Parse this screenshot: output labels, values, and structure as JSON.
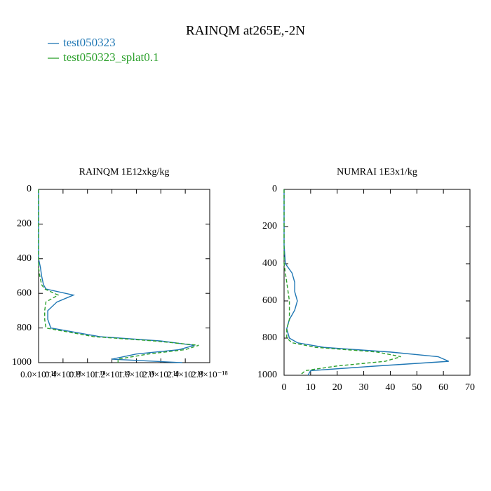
{
  "title": "RAINQM at265E,-2N",
  "legend": {
    "position": "upper left"
  },
  "chart_data": [
    {
      "type": "line",
      "title": "RAINQM  1E12xkg/kg",
      "y": [
        0,
        100,
        200,
        300,
        400,
        450,
        500,
        550,
        575,
        610,
        650,
        700,
        750,
        800,
        850,
        875,
        900,
        925,
        950,
        980,
        1000
      ],
      "series": [
        {
          "name": "test050323",
          "color": "#1f77b4",
          "linestyle": "solid",
          "values": [
            0,
            0,
            0,
            0,
            0,
            3e-20,
            5e-20,
            8e-20,
            1.2e-19,
            5.7e-19,
            3e-19,
            1.5e-19,
            1.5e-19,
            2e-19,
            1e-18,
            2e-18,
            2.55e-18,
            2.3e-18,
            1.6e-18,
            1.2e-18,
            2.35e-18
          ]
        },
        {
          "name": "test050323_splat0.1",
          "color": "#2ca02c",
          "linestyle": "dashed",
          "values": [
            0,
            0,
            0,
            0,
            0,
            0,
            2e-20,
            5e-20,
            1e-19,
            3.2e-19,
            1.2e-19,
            1e-19,
            1e-19,
            1.2e-19,
            9e-19,
            1.9e-18,
            2.62e-18,
            2.4e-18,
            1.8e-18,
            1.3e-18,
            1.3e-18
          ]
        }
      ],
      "xlim": [
        0,
        2.8e-18
      ],
      "xticks": [
        {
          "value": 0,
          "label": "0.0×10⁻¹⁸"
        },
        {
          "value": 4e-19,
          "label": "0.4×10⁻¹⁸"
        },
        {
          "value": 8e-19,
          "label": "0.8×10⁻¹⁸"
        },
        {
          "value": 1.2e-18,
          "label": "1.2×10⁻¹⁸"
        },
        {
          "value": 1.6e-18,
          "label": "1.6×10⁻¹⁸"
        },
        {
          "value": 2e-18,
          "label": "2.0×10⁻¹⁸"
        },
        {
          "value": 2.4e-18,
          "label": "2.4×10⁻¹⁸"
        },
        {
          "value": 2.8e-18,
          "label": "2.8×10⁻¹⁸"
        }
      ],
      "ylim": [
        1000,
        0
      ],
      "yticks": [
        0,
        200,
        400,
        600,
        800,
        1000
      ]
    },
    {
      "type": "line",
      "title": "NUMRAI  1E3x1/kg",
      "y": [
        0,
        100,
        200,
        300,
        400,
        450,
        500,
        550,
        600,
        650,
        700,
        750,
        800,
        825,
        850,
        875,
        900,
        925,
        950,
        975,
        1000
      ],
      "series": [
        {
          "color": "#1f77b4",
          "linestyle": "solid",
          "values": [
            0,
            0,
            0,
            0,
            0.5,
            3,
            4,
            4,
            5,
            4,
            2,
            1,
            2,
            5,
            15,
            40,
            58,
            62,
            35,
            10,
            9
          ]
        },
        {
          "color": "#2ca02c",
          "linestyle": "dashed",
          "values": [
            0,
            0,
            0,
            0,
            0,
            0.5,
            1,
            1.5,
            2,
            2,
            2,
            1,
            1,
            3,
            12,
            35,
            44,
            38,
            20,
            8,
            6
          ]
        }
      ],
      "xlim": [
        0,
        70
      ],
      "xticks": [
        0,
        10,
        20,
        30,
        40,
        50,
        60,
        70
      ],
      "ylim": [
        1000,
        0
      ],
      "yticks": [
        0,
        200,
        400,
        600,
        800,
        1000
      ]
    }
  ]
}
